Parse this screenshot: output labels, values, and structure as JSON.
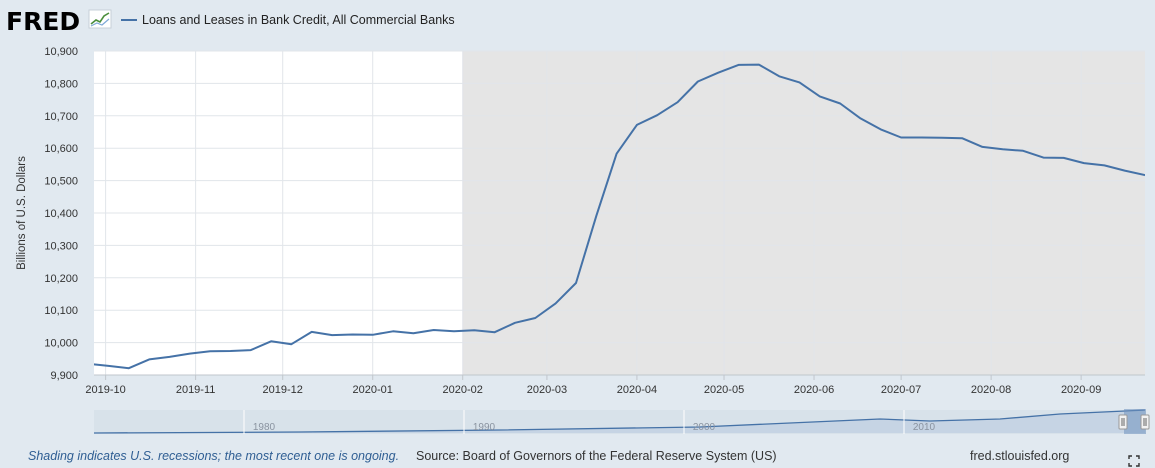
{
  "brand": {
    "logo_text": "FRED",
    "logo_icon": "chart-line-icon",
    "color": "#222222"
  },
  "legend": {
    "label": "Loans and Leases in Bank Credit, All Commercial Banks",
    "color": "#4572a7"
  },
  "footer": {
    "note": "Shading indicates U.S. recessions; the most recent one is ongoing.",
    "source": "Source: Board of Governors of the Federal Reserve System (US)",
    "site": "fred.stlouisfed.org"
  },
  "navigator": {
    "ticks": [
      "1980",
      "1990",
      "2000",
      "2010"
    ]
  },
  "chart_data": {
    "type": "line",
    "title": "",
    "xlabel": "",
    "ylabel": "Billions of U.S. Dollars",
    "ylim": [
      9900,
      10900
    ],
    "xlim": [
      "2019-09-27",
      "2020-09-23"
    ],
    "y_ticks": [
      "9,900",
      "10,000",
      "10,100",
      "10,200",
      "10,300",
      "10,400",
      "10,500",
      "10,600",
      "10,700",
      "10,800",
      "10,900"
    ],
    "x_ticks": [
      "2019-10",
      "2019-11",
      "2019-12",
      "2020-01",
      "2020-02",
      "2020-03",
      "2020-04",
      "2020-05",
      "2020-06",
      "2020-07",
      "2020-08",
      "2020-09"
    ],
    "grid": true,
    "recession_shading": {
      "start": "2020-02-01",
      "end": "ongoing",
      "color": "#e5e5e5"
    },
    "series": [
      {
        "name": "Loans and Leases in Bank Credit, All Commercial Banks",
        "color": "#4572a7",
        "x": [
          "2019-09-25",
          "2019-10-02",
          "2019-10-09",
          "2019-10-16",
          "2019-10-23",
          "2019-10-30",
          "2019-11-06",
          "2019-11-13",
          "2019-11-20",
          "2019-11-27",
          "2019-12-04",
          "2019-12-11",
          "2019-12-18",
          "2019-12-25",
          "2020-01-01",
          "2020-01-08",
          "2020-01-15",
          "2020-01-22",
          "2020-01-29",
          "2020-02-05",
          "2020-02-12",
          "2020-02-19",
          "2020-02-26",
          "2020-03-04",
          "2020-03-11",
          "2020-03-18",
          "2020-03-25",
          "2020-04-01",
          "2020-04-08",
          "2020-04-15",
          "2020-04-22",
          "2020-04-29",
          "2020-05-06",
          "2020-05-13",
          "2020-05-20",
          "2020-05-27",
          "2020-06-03",
          "2020-06-10",
          "2020-06-17",
          "2020-06-24",
          "2020-07-01",
          "2020-07-08",
          "2020-07-15",
          "2020-07-22",
          "2020-07-29",
          "2020-08-05",
          "2020-08-12",
          "2020-08-19",
          "2020-08-26",
          "2020-09-02",
          "2020-09-09",
          "2020-09-16",
          "2020-09-23"
        ],
        "y": [
          9935,
          9928,
          9921,
          9948,
          9956,
          9966,
          9973,
          9974,
          9977,
          10004,
          9995,
          10033,
          10023,
          10025,
          10024,
          10035,
          10029,
          10039,
          10035,
          10038,
          10032,
          10061,
          10076,
          10121,
          10184,
          10391,
          10583,
          10672,
          10702,
          10742,
          10806,
          10833,
          10857,
          10858,
          10822,
          10803,
          10760,
          10738,
          10692,
          10658,
          10633,
          10633,
          10632,
          10631,
          10604,
          10597,
          10592,
          10571,
          10570,
          10554,
          10547,
          10531,
          10517
        ]
      }
    ]
  }
}
